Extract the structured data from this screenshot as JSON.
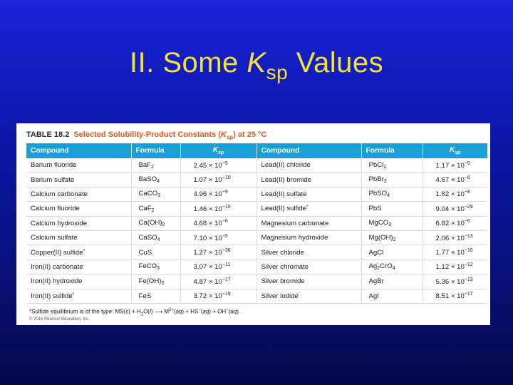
{
  "slide": {
    "title_prefix": "II. Some ",
    "title_k": "K",
    "title_sub": "sp",
    "title_suffix": " Values"
  },
  "table": {
    "caption_number": "TABLE 18.2",
    "caption_text": "Selected Solubility-Product Constants (",
    "caption_k": "K",
    "caption_sub": "sp",
    "caption_end": ") at 25 °C",
    "headers": {
      "compound": "Compound",
      "formula": "Formula",
      "k": "K",
      "k_sub": "sp"
    },
    "left_rows": [
      {
        "compound": "Barium fluoride",
        "star": "",
        "formula": [
          [
            "BaF",
            ""
          ],
          [
            "2",
            "sub"
          ]
        ],
        "mant": "2.45",
        "exp": "−5"
      },
      {
        "compound": "Barium sulfate",
        "star": "",
        "formula": [
          [
            "BaSO",
            ""
          ],
          [
            "4",
            "sub"
          ]
        ],
        "mant": "1.07",
        "exp": "−10"
      },
      {
        "compound": "Calcium carbonate",
        "star": "",
        "formula": [
          [
            "CaCO",
            ""
          ],
          [
            "3",
            "sub"
          ]
        ],
        "mant": "4.96",
        "exp": "−9"
      },
      {
        "compound": "Calcium fluoride",
        "star": "",
        "formula": [
          [
            "CaF",
            ""
          ],
          [
            "2",
            "sub"
          ]
        ],
        "mant": "1.46",
        "exp": "−10"
      },
      {
        "compound": "Calcium hydroxide",
        "star": "",
        "formula": [
          [
            "Ca(OH)",
            ""
          ],
          [
            "2",
            "sub"
          ]
        ],
        "mant": "4.68",
        "exp": "−6"
      },
      {
        "compound": "Calcium sulfate",
        "star": "",
        "formula": [
          [
            "CaSO",
            ""
          ],
          [
            "4",
            "sub"
          ]
        ],
        "mant": "7.10",
        "exp": "−5"
      },
      {
        "compound": "Copper(II) sulfide",
        "star": "*",
        "formula": [
          [
            "CuS",
            ""
          ]
        ],
        "mant": "1.27",
        "exp": "−36"
      },
      {
        "compound": "Iron(II) carbonate",
        "star": "",
        "formula": [
          [
            "FeCO",
            ""
          ],
          [
            "3",
            "sub"
          ]
        ],
        "mant": "3.07",
        "exp": "−11"
      },
      {
        "compound": "Iron(II) hydroxide",
        "star": "",
        "formula": [
          [
            "Fe(OH)",
            ""
          ],
          [
            "2",
            "sub"
          ]
        ],
        "mant": "4.87",
        "exp": "−17"
      },
      {
        "compound": "Iron(II) sulfide",
        "star": "*",
        "formula": [
          [
            "FeS",
            ""
          ]
        ],
        "mant": "3.72",
        "exp": "−19"
      }
    ],
    "right_rows": [
      {
        "compound": "Lead(II) chloride",
        "star": "",
        "formula": [
          [
            "PbCl",
            ""
          ],
          [
            "2",
            "sub"
          ]
        ],
        "mant": "1.17",
        "exp": "−5"
      },
      {
        "compound": "Lead(II) bromide",
        "star": "",
        "formula": [
          [
            "PbBr",
            ""
          ],
          [
            "2",
            "sub"
          ]
        ],
        "mant": "4.67",
        "exp": "−6"
      },
      {
        "compound": "Lead(II) sulfate",
        "star": "",
        "formula": [
          [
            "PbSO",
            ""
          ],
          [
            "4",
            "sub"
          ]
        ],
        "mant": "1.82",
        "exp": "−8"
      },
      {
        "compound": "Lead(II) sulfide",
        "star": "*",
        "formula": [
          [
            "PbS",
            ""
          ]
        ],
        "mant": "9.04",
        "exp": "−29"
      },
      {
        "compound": "Magnesium carbonate",
        "star": "",
        "formula": [
          [
            "MgCO",
            ""
          ],
          [
            "3",
            "sub"
          ]
        ],
        "mant": "6.82",
        "exp": "−6"
      },
      {
        "compound": "Magnesium hydroxide",
        "star": "",
        "formula": [
          [
            "Mg(OH)",
            ""
          ],
          [
            "2",
            "sub"
          ]
        ],
        "mant": "2.06",
        "exp": "−13"
      },
      {
        "compound": "Silver chloride",
        "star": "",
        "formula": [
          [
            "AgCl",
            ""
          ]
        ],
        "mant": "1.77",
        "exp": "−10"
      },
      {
        "compound": "Silver chromate",
        "star": "",
        "formula": [
          [
            "Ag",
            ""
          ],
          [
            "2",
            "sub"
          ],
          [
            "CrO",
            ""
          ],
          [
            "4",
            "sub"
          ]
        ],
        "mant": "1.12",
        "exp": "−12"
      },
      {
        "compound": "Silver bromide",
        "star": "",
        "formula": [
          [
            "AgBr",
            ""
          ]
        ],
        "mant": "5.36",
        "exp": "−13"
      },
      {
        "compound": "Silver iodide",
        "star": "",
        "formula": [
          [
            "AgI",
            ""
          ]
        ],
        "mant": "8.51",
        "exp": "−17"
      }
    ],
    "times_ten": "× 10",
    "footnote_parts": [
      [
        "*Sulfide equilibrium is of the type: MS(",
        ""
      ],
      [
        "s",
        "i"
      ],
      [
        ") + H",
        ""
      ],
      [
        "2",
        "sub"
      ],
      [
        "O(",
        ""
      ],
      [
        "l",
        "i"
      ],
      [
        ") ⟶ M",
        ""
      ],
      [
        "2+",
        "sup"
      ],
      [
        "(",
        ""
      ],
      [
        "aq",
        "i"
      ],
      [
        ") + HS",
        ""
      ],
      [
        "−",
        "sup"
      ],
      [
        "(",
        ""
      ],
      [
        "aq",
        "i"
      ],
      [
        ") + OH",
        ""
      ],
      [
        "−",
        "sup"
      ],
      [
        "(",
        ""
      ],
      [
        "aq",
        "i"
      ],
      [
        ").",
        ""
      ]
    ],
    "copyright": "© 2015 Pearson Education, Inc."
  },
  "colors": {
    "title": "#f2e23a",
    "header_bg": "#1aa0d6",
    "caption_accent": "#e35b1a"
  }
}
